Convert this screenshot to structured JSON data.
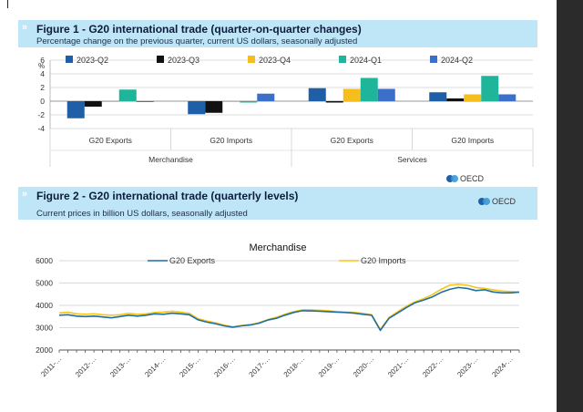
{
  "figure1": {
    "title": "Figure 1  -  G20 international trade (quarter-on-quarter changes)",
    "subtitle": "Percentage change on the previous quarter, current US dollars, seasonally adjusted",
    "source": "OECD"
  },
  "figure2": {
    "title": "Figure 2  -  G20 international trade (quarterly levels)",
    "subtitle": "Current prices in billion US dollars, seasonally adjusted",
    "source": "OECD"
  },
  "chart_data": [
    {
      "type": "bar",
      "ylabel": "%",
      "ylim": [
        -4,
        6
      ],
      "yticks": [
        -4,
        -2,
        0,
        2,
        4,
        6
      ],
      "grid": true,
      "legend_position": "top",
      "categories": [
        "G20 Exports",
        "G20 Imports",
        "G20 Exports",
        "G20 Imports"
      ],
      "groups": [
        {
          "label": "Merchandise",
          "categories": [
            0,
            1
          ]
        },
        {
          "label": "Services",
          "categories": [
            2,
            3
          ]
        }
      ],
      "series": [
        {
          "name": "2023-Q2",
          "color": "#1f5fa8",
          "values": [
            -2.5,
            -1.9,
            1.9,
            1.3
          ]
        },
        {
          "name": "2023-Q3",
          "color": "#111111",
          "values": [
            -0.8,
            -1.7,
            -0.2,
            0.4
          ]
        },
        {
          "name": "2023-Q4",
          "color": "#f5be1d",
          "values": [
            -0.1,
            -0.1,
            1.8,
            1.0
          ]
        },
        {
          "name": "2024-Q1",
          "color": "#1fb59a",
          "values": [
            1.7,
            -0.2,
            3.4,
            3.7
          ]
        },
        {
          "name": "2024-Q2",
          "color": "#3b6fc9",
          "values": [
            -0.1,
            1.1,
            1.8,
            1.0
          ]
        }
      ]
    },
    {
      "type": "line",
      "title": "Merchandise",
      "ylim": [
        2000,
        6000
      ],
      "yticks": [
        2000,
        3000,
        4000,
        5000,
        6000
      ],
      "grid": true,
      "legend_position": "top",
      "x": [
        "2011-Q1",
        "2011-Q2",
        "2011-Q3",
        "2011-Q4",
        "2012-Q1",
        "2012-Q2",
        "2012-Q3",
        "2012-Q4",
        "2013-Q1",
        "2013-Q2",
        "2013-Q3",
        "2013-Q4",
        "2014-Q1",
        "2014-Q2",
        "2014-Q3",
        "2014-Q4",
        "2015-Q1",
        "2015-Q2",
        "2015-Q3",
        "2015-Q4",
        "2016-Q1",
        "2016-Q2",
        "2016-Q3",
        "2016-Q4",
        "2017-Q1",
        "2017-Q2",
        "2017-Q3",
        "2017-Q4",
        "2018-Q1",
        "2018-Q2",
        "2018-Q3",
        "2018-Q4",
        "2019-Q1",
        "2019-Q2",
        "2019-Q3",
        "2019-Q4",
        "2020-Q1",
        "2020-Q2",
        "2020-Q3",
        "2020-Q4",
        "2021-Q1",
        "2021-Q2",
        "2021-Q3",
        "2021-Q4",
        "2022-Q1",
        "2022-Q2",
        "2022-Q3",
        "2022-Q4",
        "2023-Q1",
        "2023-Q2",
        "2023-Q3",
        "2023-Q4",
        "2024-Q1",
        "2024-Q2"
      ],
      "xticklabels": [
        "2011-…",
        "2012-…",
        "2013-…",
        "2014-…",
        "2015-…",
        "2016-…",
        "2017-…",
        "2018-…",
        "2019-…",
        "2020-…",
        "2021-…",
        "2022-…",
        "2023-…",
        "2024-…"
      ],
      "series": [
        {
          "name": "G20 Exports",
          "color": "#1f6fa0",
          "values": [
            3560,
            3580,
            3520,
            3500,
            3520,
            3480,
            3440,
            3500,
            3560,
            3520,
            3560,
            3620,
            3600,
            3650,
            3620,
            3580,
            3350,
            3250,
            3180,
            3080,
            3020,
            3080,
            3120,
            3200,
            3340,
            3420,
            3560,
            3680,
            3760,
            3750,
            3740,
            3720,
            3700,
            3680,
            3650,
            3600,
            3560,
            2880,
            3420,
            3660,
            3900,
            4120,
            4240,
            4380,
            4580,
            4720,
            4800,
            4760,
            4660,
            4700,
            4600,
            4560,
            4560,
            4590
          ]
        },
        {
          "name": "G20 Imports",
          "color": "#f5c518",
          "values": [
            3660,
            3690,
            3620,
            3600,
            3620,
            3580,
            3560,
            3580,
            3640,
            3600,
            3620,
            3680,
            3700,
            3740,
            3700,
            3640,
            3400,
            3300,
            3220,
            3120,
            3040,
            3100,
            3140,
            3220,
            3360,
            3460,
            3600,
            3720,
            3800,
            3800,
            3780,
            3760,
            3720,
            3700,
            3680,
            3640,
            3580,
            2920,
            3460,
            3720,
            3960,
            4160,
            4300,
            4480,
            4720,
            4900,
            4940,
            4900,
            4800,
            4760,
            4700,
            4640,
            4620,
            4600
          ]
        }
      ]
    }
  ]
}
